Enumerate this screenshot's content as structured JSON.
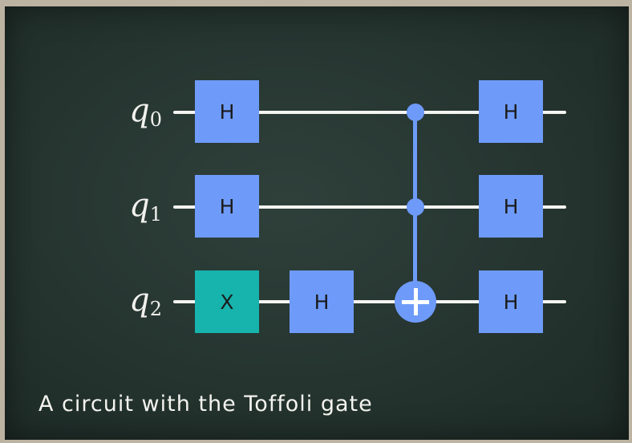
{
  "qubits": [
    {
      "name": "q",
      "index": "0"
    },
    {
      "name": "q",
      "index": "1"
    },
    {
      "name": "q",
      "index": "2"
    }
  ],
  "gates": {
    "q0_h1": "H",
    "q1_h1": "H",
    "q2_x": "X",
    "q2_h1": "H",
    "q0_h2": "H",
    "q1_h2": "H",
    "q2_h2": "H"
  },
  "toffoli": {
    "controls": [
      "q0",
      "q1"
    ],
    "target": "q2"
  },
  "caption": "A circuit with the Toffoli gate",
  "colors": {
    "h_gate": "#6e9bfa",
    "x_gate": "#17b3ad",
    "wire": "#f4f4f1",
    "board": "#25342f"
  }
}
